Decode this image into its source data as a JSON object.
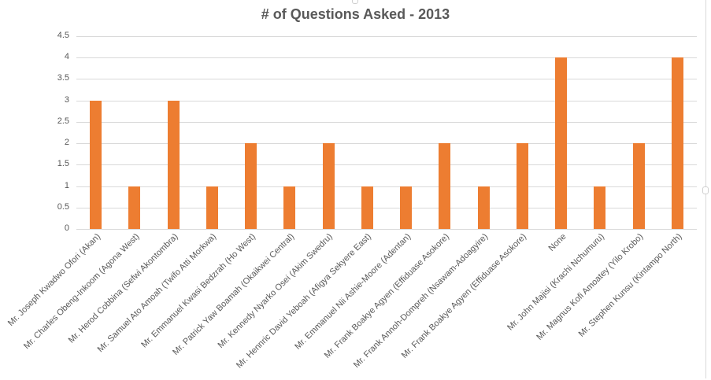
{
  "chart_data": {
    "type": "bar",
    "title": "# of Questions Asked - 2013",
    "xlabel": "",
    "ylabel": "",
    "ylim": [
      0,
      4.5
    ],
    "yticks": [
      "0",
      "0.5",
      "1",
      "1.5",
      "2",
      "2.5",
      "3",
      "3.5",
      "4",
      "4.5"
    ],
    "grid": true,
    "legend": "none",
    "bar_color": "#ED7D31",
    "categories": [
      "Mr. Joseph Kwadwo Ofori (Akan)",
      "Mr. Charles Obeng-Inkoom (Agona West)",
      "Mr. Herod Cobbina (Sefwi Akontombra)",
      "Mr. Samuel Ato Amoah (Twifo Atti Morkwa)",
      "Mr. Emmanuel Kwasi Bedzrah (Ho West)",
      "Mr. Patrick Yaw Boamah (Okaikwei Central)",
      "Mr. Kennedy Nyarko Osei (Akim Swedru)",
      "Mr. Hennric David Yeboah (Afigya Sekyere East)",
      "Mr. Emmanuel Nii Ashie-Moore (Adentan)",
      "Mr. Frank Boakye Agyen (Effiduase Asokore)",
      "Mr. Frank Annoh-Dompreh (Nsawam-Adoagyire)",
      "Mr. Frank Boakye Agyen (Effiduase Asokore)",
      "None",
      "Mr. John Majisi (Krachi Nchumuru)",
      "Mr. Magnus Kofi Amoatey (Yilo Krobo)",
      "Mr. Stephen Kunsu (Kintampo North)"
    ],
    "values": [
      3,
      1,
      3,
      1,
      2,
      1,
      2,
      1,
      1,
      2,
      1,
      2,
      4,
      1,
      2,
      4
    ]
  }
}
